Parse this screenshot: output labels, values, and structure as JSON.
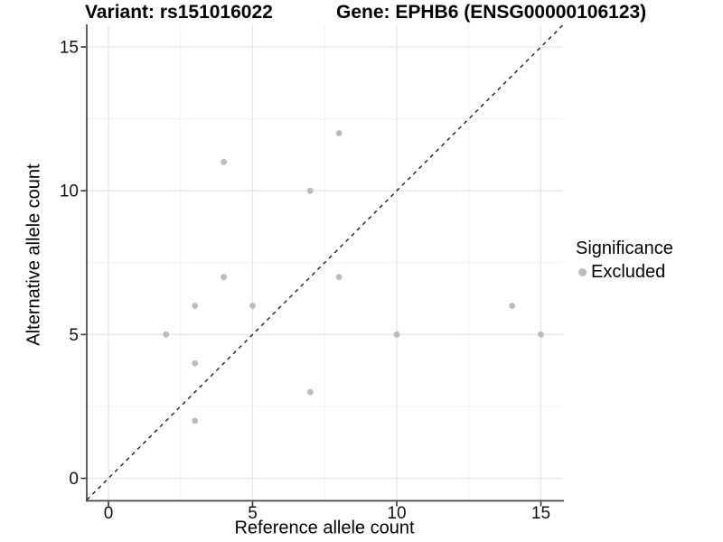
{
  "chart_data": {
    "type": "scatter",
    "title_left": "Variant: rs151016022",
    "title_right": "Gene: EPHB6 (ENSG00000106123)",
    "xlabel": "Reference allele count",
    "ylabel": "Alternative allele count",
    "xlim": [
      -0.75,
      15.75
    ],
    "ylim": [
      -0.75,
      15.75
    ],
    "x_ticks": [
      0,
      5,
      10,
      15
    ],
    "y_ticks": [
      0,
      5,
      10,
      15
    ],
    "minor_gridlines": [
      2.5,
      7.5,
      12.5
    ],
    "grid": "on",
    "identity_line": {
      "style": "dashed",
      "slope": 1,
      "intercept": 0,
      "color": "#1f1f1f"
    },
    "series": [
      {
        "name": "Excluded",
        "marker_color": "#bcbcbc",
        "points": [
          [
            2,
            5
          ],
          [
            3,
            2
          ],
          [
            3,
            4
          ],
          [
            3,
            6
          ],
          [
            4,
            7
          ],
          [
            4,
            11
          ],
          [
            5,
            6
          ],
          [
            7,
            3
          ],
          [
            7,
            10
          ],
          [
            8,
            7
          ],
          [
            8,
            12
          ],
          [
            10,
            5
          ],
          [
            14,
            6
          ],
          [
            15,
            5
          ]
        ]
      }
    ],
    "legend": {
      "title": "Significance",
      "position": "right",
      "entries": [
        {
          "label": "Excluded",
          "marker_color": "#bcbcbc"
        }
      ]
    },
    "style": {
      "major_grid_color": "#e6e6e6",
      "minor_grid_color": "#f1f1f1",
      "axis_line_color": "#454545",
      "tick_color": "#333333",
      "text_color": "#111111",
      "point_radius": 3.4
    }
  }
}
